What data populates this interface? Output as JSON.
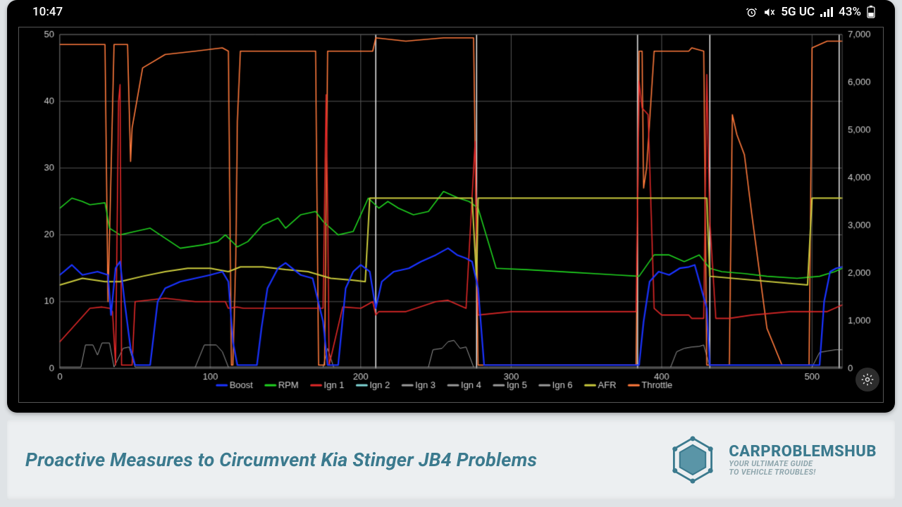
{
  "status": {
    "time": "10:47",
    "network": "5G UC",
    "battery": "43%"
  },
  "chart": {
    "type": "line",
    "background_color": "#000000",
    "grid_color": "#555555",
    "axis_text_color": "#cccccc",
    "axis_fontsize": 13,
    "legend_fontsize": 13,
    "x": {
      "lim": [
        0,
        520
      ],
      "tick_step": 100
    },
    "y_left": {
      "lim": [
        0,
        50
      ],
      "tick_step": 10
    },
    "y_right": {
      "lim": [
        0,
        7000
      ],
      "tick_step": 1000
    },
    "vertical_markers": [
      210,
      277,
      384,
      432,
      518
    ],
    "legend": [
      {
        "label": "Boost",
        "color": "#1a33ff"
      },
      {
        "label": "RPM",
        "color": "#1fd11f"
      },
      {
        "label": "Ign 1",
        "color": "#e02828"
      },
      {
        "label": "Ign 2",
        "color": "#7fd5d5"
      },
      {
        "label": "Ign 3",
        "color": "#9a9a9a"
      },
      {
        "label": "Ign 4",
        "color": "#9a9a9a"
      },
      {
        "label": "Ign 5",
        "color": "#9a9a9a"
      },
      {
        "label": "Ign 6",
        "color": "#9a9a9a"
      },
      {
        "label": "AFR",
        "color": "#c8c83c"
      },
      {
        "label": "Throttle",
        "color": "#ff7a3c"
      }
    ],
    "series": {
      "throttle": {
        "color": "#ff7a3c",
        "width": 1.6,
        "axis": "left",
        "data": [
          [
            0,
            48.5
          ],
          [
            30,
            48.5
          ],
          [
            32,
            10
          ],
          [
            36,
            48.5
          ],
          [
            45,
            48.5
          ],
          [
            47,
            31
          ],
          [
            48,
            36
          ],
          [
            55,
            45
          ],
          [
            70,
            47
          ],
          [
            90,
            47.5
          ],
          [
            108,
            48
          ],
          [
            112,
            47.5
          ],
          [
            114,
            0.5
          ],
          [
            115,
            0.5
          ],
          [
            117,
            17
          ],
          [
            118,
            37
          ],
          [
            120,
            47.5
          ],
          [
            170,
            47.5
          ],
          [
            172,
            0.5
          ],
          [
            176,
            0.5
          ],
          [
            178,
            47.5
          ],
          [
            208,
            47.5
          ],
          [
            210,
            49.5
          ],
          [
            230,
            49
          ],
          [
            255,
            49.5
          ],
          [
            275,
            49.5
          ],
          [
            278,
            0.5
          ],
          [
            383,
            0.5
          ],
          [
            385,
            47.5
          ],
          [
            387,
            47.5
          ],
          [
            388,
            27
          ],
          [
            390,
            30
          ],
          [
            395,
            47.5
          ],
          [
            418,
            47.5
          ],
          [
            420,
            48
          ],
          [
            428,
            47.5
          ],
          [
            430,
            0.5
          ],
          [
            445,
            0.5
          ],
          [
            447,
            38
          ],
          [
            450,
            35
          ],
          [
            455,
            32
          ],
          [
            460,
            23
          ],
          [
            470,
            6
          ],
          [
            480,
            0.5
          ],
          [
            498,
            0.5
          ],
          [
            500,
            48
          ],
          [
            510,
            49
          ],
          [
            520,
            49
          ]
        ]
      },
      "rpm": {
        "color": "#1fd11f",
        "width": 1.6,
        "axis": "left",
        "data": [
          [
            0,
            24
          ],
          [
            8,
            25.5
          ],
          [
            15,
            25
          ],
          [
            20,
            24.5
          ],
          [
            30,
            24.8
          ],
          [
            33,
            21
          ],
          [
            40,
            20
          ],
          [
            50,
            20.5
          ],
          [
            60,
            21
          ],
          [
            80,
            18
          ],
          [
            95,
            18.5
          ],
          [
            105,
            19
          ],
          [
            110,
            20
          ],
          [
            118,
            18.2
          ],
          [
            125,
            19
          ],
          [
            135,
            21.5
          ],
          [
            145,
            22.5
          ],
          [
            150,
            21
          ],
          [
            160,
            23
          ],
          [
            170,
            23.5
          ],
          [
            175,
            22
          ],
          [
            185,
            20
          ],
          [
            195,
            20.5
          ],
          [
            205,
            25.5
          ],
          [
            212,
            24
          ],
          [
            218,
            25
          ],
          [
            225,
            24
          ],
          [
            235,
            23
          ],
          [
            245,
            23.5
          ],
          [
            255,
            26.5
          ],
          [
            265,
            25.5
          ],
          [
            272,
            25
          ],
          [
            278,
            24
          ],
          [
            290,
            15
          ],
          [
            310,
            14.8
          ],
          [
            340,
            14.4
          ],
          [
            370,
            14
          ],
          [
            385,
            13.8
          ],
          [
            395,
            17
          ],
          [
            405,
            17
          ],
          [
            415,
            16
          ],
          [
            425,
            17
          ],
          [
            432,
            15
          ],
          [
            440,
            14.5
          ],
          [
            455,
            14.2
          ],
          [
            470,
            13.8
          ],
          [
            490,
            13.5
          ],
          [
            505,
            13.8
          ],
          [
            515,
            14.5
          ],
          [
            520,
            15
          ]
        ]
      },
      "ign1": {
        "color": "#e02828",
        "width": 1.6,
        "axis": "left",
        "data": [
          [
            0,
            4
          ],
          [
            20,
            9
          ],
          [
            28,
            9.2
          ],
          [
            33,
            9
          ],
          [
            35,
            8.5
          ],
          [
            37,
            0.5
          ],
          [
            39,
            40
          ],
          [
            40,
            42.5
          ],
          [
            41,
            0.5
          ],
          [
            48,
            0.5
          ],
          [
            50,
            10
          ],
          [
            70,
            10.5
          ],
          [
            90,
            10
          ],
          [
            106,
            10
          ],
          [
            110,
            10
          ],
          [
            112,
            9
          ],
          [
            118,
            9.2
          ],
          [
            122,
            9
          ],
          [
            160,
            9
          ],
          [
            175,
            9
          ],
          [
            177,
            41
          ],
          [
            178,
            24
          ],
          [
            179,
            0.5
          ],
          [
            188,
            9.2
          ],
          [
            200,
            9
          ],
          [
            208,
            10
          ],
          [
            210,
            8
          ],
          [
            212,
            8.5
          ],
          [
            230,
            8.5
          ],
          [
            250,
            10
          ],
          [
            258,
            10.2
          ],
          [
            270,
            9
          ],
          [
            276,
            34
          ],
          [
            278,
            8
          ],
          [
            300,
            8.5
          ],
          [
            340,
            8.5
          ],
          [
            383,
            8.5
          ],
          [
            385,
            43
          ],
          [
            387,
            39
          ],
          [
            391,
            38
          ],
          [
            395,
            9
          ],
          [
            400,
            8
          ],
          [
            412,
            8
          ],
          [
            418,
            8
          ],
          [
            420,
            7.5
          ],
          [
            425,
            7.5
          ],
          [
            428,
            7.5
          ],
          [
            430,
            44
          ],
          [
            432,
            22
          ],
          [
            436,
            7.5
          ],
          [
            445,
            7.5
          ],
          [
            460,
            8
          ],
          [
            485,
            8.5
          ],
          [
            505,
            8.5
          ],
          [
            510,
            8.5
          ],
          [
            520,
            9.5
          ]
        ]
      },
      "boost": {
        "color": "#1a33ff",
        "width": 2.2,
        "axis": "left",
        "data": [
          [
            0,
            14
          ],
          [
            8,
            15.5
          ],
          [
            15,
            14
          ],
          [
            25,
            14.5
          ],
          [
            32,
            14
          ],
          [
            34,
            8
          ],
          [
            37,
            15
          ],
          [
            40,
            16
          ],
          [
            43,
            10
          ],
          [
            47,
            3
          ],
          [
            50,
            0.5
          ],
          [
            60,
            0.5
          ],
          [
            65,
            10
          ],
          [
            70,
            12
          ],
          [
            80,
            13
          ],
          [
            90,
            13.5
          ],
          [
            100,
            14
          ],
          [
            108,
            14.5
          ],
          [
            112,
            13
          ],
          [
            115,
            4
          ],
          [
            118,
            0.5
          ],
          [
            131,
            0.5
          ],
          [
            134,
            6
          ],
          [
            138,
            12
          ],
          [
            145,
            15
          ],
          [
            150,
            15.8
          ],
          [
            160,
            14
          ],
          [
            168,
            13.5
          ],
          [
            175,
            7
          ],
          [
            178,
            0.5
          ],
          [
            185,
            0.5
          ],
          [
            190,
            12
          ],
          [
            195,
            14.5
          ],
          [
            200,
            15.5
          ],
          [
            206,
            14.5
          ],
          [
            210,
            9
          ],
          [
            214,
            13
          ],
          [
            222,
            14.5
          ],
          [
            232,
            15
          ],
          [
            240,
            16
          ],
          [
            250,
            17
          ],
          [
            258,
            18
          ],
          [
            264,
            17
          ],
          [
            270,
            16.5
          ],
          [
            274,
            16
          ],
          [
            278,
            12
          ],
          [
            282,
            0.5
          ],
          [
            385,
            0.5
          ],
          [
            388,
            7
          ],
          [
            392,
            13
          ],
          [
            398,
            14.5
          ],
          [
            405,
            14
          ],
          [
            412,
            15
          ],
          [
            418,
            15.2
          ],
          [
            422,
            15.5
          ],
          [
            430,
            9
          ],
          [
            432,
            0.5
          ],
          [
            505,
            0.5
          ],
          [
            508,
            10
          ],
          [
            512,
            14.5
          ],
          [
            516,
            15
          ],
          [
            520,
            15.2
          ]
        ]
      },
      "afr": {
        "color": "#c8c83c",
        "width": 2,
        "axis": "left",
        "data": [
          [
            0,
            12.5
          ],
          [
            15,
            13.5
          ],
          [
            30,
            13
          ],
          [
            40,
            13
          ],
          [
            55,
            13.8
          ],
          [
            70,
            14.5
          ],
          [
            85,
            15
          ],
          [
            100,
            15
          ],
          [
            112,
            14.5
          ],
          [
            120,
            15.2
          ],
          [
            135,
            15.2
          ],
          [
            150,
            14.8
          ],
          [
            165,
            14.5
          ],
          [
            180,
            13.5
          ],
          [
            195,
            13.2
          ],
          [
            203,
            13
          ],
          [
            206,
            25.5
          ],
          [
            274,
            25.5
          ],
          [
            277,
            13.2
          ],
          [
            278,
            25.5
          ],
          [
            430,
            25.5
          ],
          [
            432,
            13.8
          ],
          [
            497,
            12.5
          ],
          [
            500,
            25.5
          ],
          [
            520,
            25.5
          ]
        ]
      },
      "ign_lo1": {
        "color": "#9a9a9a",
        "width": 1,
        "axis": "left",
        "data": [
          [
            0,
            0.2
          ],
          [
            14,
            0.2
          ],
          [
            17,
            3.5
          ],
          [
            22,
            3.5
          ],
          [
            25,
            2
          ],
          [
            28,
            3.8
          ],
          [
            33,
            3.8
          ],
          [
            36,
            0.2
          ],
          [
            42,
            3
          ],
          [
            46,
            3.2
          ],
          [
            50,
            0.2
          ],
          [
            520,
            0.2
          ]
        ],
        "clipTo": 280
      },
      "ign_lo2": {
        "color": "#9a9a9a",
        "width": 1,
        "axis": "left",
        "data": [
          [
            90,
            0.2
          ],
          [
            96,
            3.5
          ],
          [
            104,
            3.5
          ],
          [
            108,
            2.5
          ],
          [
            112,
            0.2
          ]
        ]
      },
      "ign_lo3": {
        "color": "#9a9a9a",
        "width": 1,
        "axis": "left",
        "data": [
          [
            175,
            0.2
          ],
          [
            178,
            3
          ],
          [
            182,
            0.2
          ]
        ]
      },
      "ign_lo4": {
        "color": "#9a9a9a",
        "width": 1,
        "axis": "left",
        "data": [
          [
            245,
            0.2
          ],
          [
            248,
            2.8
          ],
          [
            254,
            3
          ],
          [
            258,
            4
          ],
          [
            262,
            4.2
          ],
          [
            266,
            3
          ],
          [
            270,
            3.2
          ],
          [
            275,
            0.2
          ]
        ]
      },
      "ign_lo5": {
        "color": "#9a9a9a",
        "width": 1,
        "axis": "left",
        "data": [
          [
            406,
            0.2
          ],
          [
            410,
            2.5
          ],
          [
            415,
            3
          ],
          [
            420,
            3.2
          ],
          [
            425,
            3.3
          ],
          [
            428,
            3.5
          ],
          [
            432,
            0.2
          ]
        ]
      },
      "ign_lo6": {
        "color": "#9a9a9a",
        "width": 1,
        "axis": "left",
        "data": [
          [
            500,
            0.2
          ],
          [
            505,
            2.4
          ],
          [
            510,
            2.6
          ],
          [
            516,
            2.8
          ],
          [
            520,
            2.8
          ]
        ]
      }
    },
    "draw_order": [
      "ign_lo1",
      "ign_lo2",
      "ign_lo3",
      "ign_lo4",
      "ign_lo5",
      "ign_lo6",
      "throttle",
      "rpm",
      "ign1",
      "afr",
      "boost"
    ]
  },
  "banner": {
    "title": "Proactive Measures to Circumvent Kia Stinger JB4 Problems",
    "brand_name": "CARPROBLEMSHUB",
    "brand_tag_line1": "YOUR ULTIMATE GUIDE",
    "brand_tag_line2": "TO VEHICLE TROUBLES!",
    "brand_color": "#3b7a8e"
  }
}
